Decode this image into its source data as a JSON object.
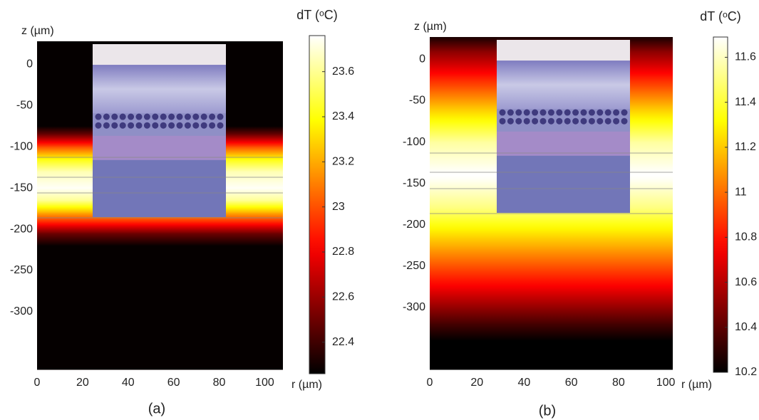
{
  "chart_data": [
    {
      "type": "heatmap",
      "caption": "(a)",
      "xlabel": "r (µm)",
      "ylabel": "z (µm)",
      "colorbar_label": "dT (ᵒC)",
      "xlim": [
        0,
        108
      ],
      "xticks": [
        0,
        20,
        40,
        60,
        80,
        100
      ],
      "ylim": [
        -370,
        28
      ],
      "yticks": [
        0,
        -50,
        -100,
        -150,
        -200,
        -250,
        -300
      ],
      "z": [
        28,
        -75,
        -85,
        -100,
        -115,
        -130,
        -150,
        -165,
        -180,
        -195,
        -205,
        -220,
        -370
      ],
      "values": [
        22.27,
        22.27,
        22.5,
        23.0,
        23.4,
        23.65,
        23.75,
        23.6,
        23.2,
        22.8,
        22.5,
        22.27,
        22.27
      ],
      "clim": [
        22.26,
        23.76
      ],
      "cticks": [
        22.4,
        22.6,
        22.8,
        23,
        23.2,
        23.4,
        23.6
      ]
    },
    {
      "type": "heatmap",
      "caption": "(b)",
      "xlabel": "r (µm)",
      "ylabel": "z (µm)",
      "colorbar_label": "dT (ᵒC)",
      "xlim": [
        0,
        103
      ],
      "xticks": [
        0,
        20,
        40,
        60,
        80,
        100
      ],
      "ylim": [
        -375,
        27
      ],
      "yticks": [
        0,
        -50,
        -100,
        -150,
        -200,
        -250,
        -300
      ],
      "z": [
        27,
        10,
        -20,
        -60,
        -100,
        -140,
        -180,
        -230,
        -280,
        -320,
        -340,
        -375
      ],
      "values": [
        10.25,
        10.5,
        10.8,
        11.2,
        11.55,
        11.7,
        11.5,
        11.1,
        10.7,
        10.35,
        10.2,
        10.2
      ],
      "clim": [
        10.2,
        11.69
      ],
      "cticks": [
        10.2,
        10.4,
        10.6,
        10.8,
        11,
        11.2,
        11.4,
        11.6
      ]
    }
  ]
}
